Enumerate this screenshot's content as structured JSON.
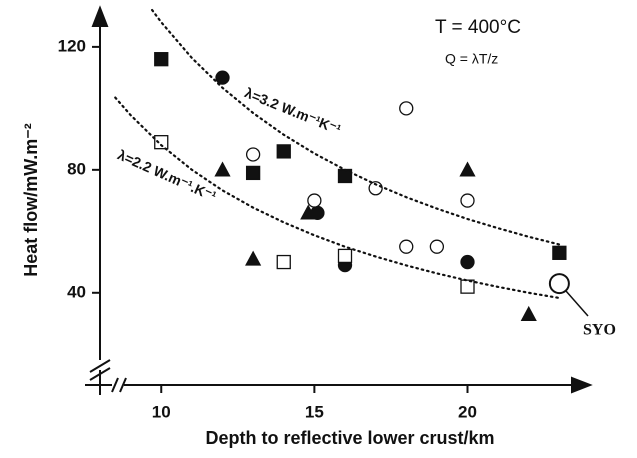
{
  "chart_data": {
    "type": "scatter",
    "x_label": "Depth to reflective lower crust/km",
    "y_label": "Heat flow/mW.m⁻²",
    "xlim": [
      8,
      24
    ],
    "ylim": [
      10,
      132
    ],
    "xticks": [
      10,
      15,
      20
    ],
    "yticks": [
      40,
      80,
      120
    ],
    "grid": false,
    "annotations": [
      "T = 400°C",
      "Q = λT/z",
      "SYO"
    ],
    "series": [
      {
        "marker": "square",
        "filled": true,
        "color": "#111111",
        "x": [
          10,
          13,
          14,
          16,
          23
        ],
        "values": [
          116,
          79,
          86,
          78,
          53
        ]
      },
      {
        "marker": "circle",
        "filled": true,
        "color": "#111111",
        "x": [
          12,
          15.1,
          16,
          20
        ],
        "values": [
          110,
          66,
          49,
          50
        ]
      },
      {
        "marker": "triangle",
        "filled": true,
        "color": "#111111",
        "x": [
          12,
          13,
          14.8,
          20,
          22
        ],
        "values": [
          80,
          51,
          66,
          80,
          33
        ]
      },
      {
        "marker": "circle",
        "filled": false,
        "color": "#111111",
        "x": [
          13,
          15,
          17,
          18,
          18,
          19,
          20
        ],
        "values": [
          85,
          70,
          74,
          100,
          55,
          55,
          70
        ]
      },
      {
        "marker": "square",
        "filled": false,
        "color": "#111111",
        "x": [
          10,
          14,
          16,
          20
        ],
        "values": [
          89,
          50,
          52,
          42
        ]
      },
      {
        "marker": "big-circle",
        "filled": false,
        "color": "#111111",
        "x": [
          23
        ],
        "values": [
          43
        ]
      },
      {
        "marker": "dotted-line",
        "color": "#111111",
        "label": "λ=3.2 W.m⁻¹K⁻¹",
        "x": [
          9.7,
          10,
          11,
          12,
          13,
          14,
          15,
          16,
          17,
          18,
          19,
          20,
          21,
          22,
          23
        ],
        "values": [
          132,
          128,
          116.4,
          106.7,
          98.5,
          91.4,
          85.3,
          80,
          75.3,
          71.1,
          67.4,
          64,
          61,
          58.2,
          55.7
        ]
      },
      {
        "marker": "dotted-line",
        "color": "#111111",
        "label": "λ=2.2 W.m⁻¹.K⁻¹",
        "x": [
          8.5,
          9,
          10,
          11,
          12,
          13,
          14,
          15,
          16,
          17,
          18,
          19,
          20,
          21,
          22,
          23
        ],
        "values": [
          103.5,
          97.8,
          88,
          80,
          73.3,
          67.7,
          62.9,
          58.7,
          55,
          51.8,
          48.9,
          46.3,
          44,
          41.9,
          40,
          38.3
        ]
      }
    ]
  }
}
